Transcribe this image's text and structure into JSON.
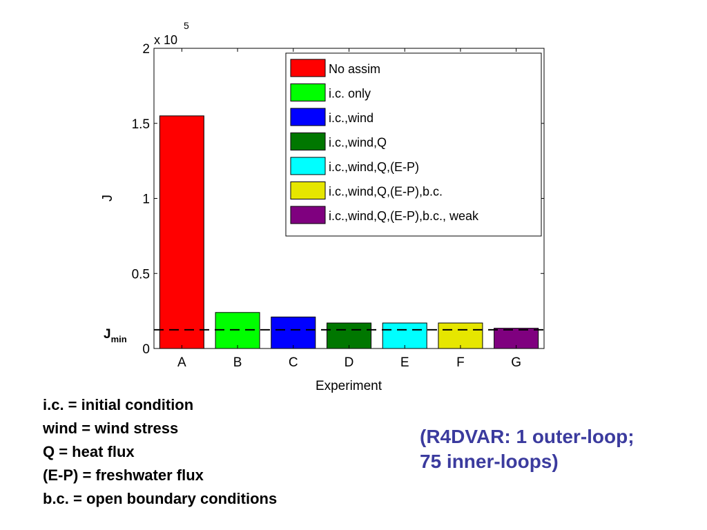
{
  "chart_data": {
    "type": "bar",
    "categories": [
      "A",
      "B",
      "C",
      "D",
      "E",
      "F",
      "G"
    ],
    "values": [
      155000,
      24000,
      21000,
      17000,
      17000,
      17000,
      13500
    ],
    "colors": [
      "#ff0000",
      "#00ff00",
      "#0000ff",
      "#007700",
      "#00ffff",
      "#e6e600",
      "#7f007f"
    ],
    "legend": [
      {
        "label": "No assim",
        "color": "#ff0000"
      },
      {
        "label": "i.c. only",
        "color": "#00ff00"
      },
      {
        "label": "i.c.,wind",
        "color": "#0000ff"
      },
      {
        "label": "i.c.,wind,Q",
        "color": "#007700"
      },
      {
        "label": "i.c.,wind,Q,(E-P)",
        "color": "#00ffff"
      },
      {
        "label": "i.c.,wind,Q,(E-P),b.c.",
        "color": "#e6e600"
      },
      {
        "label": "i.c.,wind,Q,(E-P),b.c., weak",
        "color": "#7f007f"
      }
    ],
    "legend_position": "top-right",
    "xlabel": "Experiment",
    "ylabel": "J",
    "ylim": [
      0,
      200000
    ],
    "yticks": [
      0,
      50000,
      100000,
      150000,
      200000
    ],
    "ytick_labels": [
      "0",
      "0.5",
      "1",
      "1.5",
      "2"
    ],
    "y_exponent_base": "x 10",
    "y_exponent_power": "5",
    "reference_line": {
      "label_main": "J",
      "label_sub": "min",
      "value": 12500,
      "style": "dashed"
    },
    "grid": false
  },
  "definitions": [
    "i.c. = initial condition",
    "wind = wind stress",
    "Q = heat flux",
    "(E-P) = freshwater flux",
    "b.c. = open boundary conditions"
  ],
  "note": {
    "line1": "(R4DVAR: 1 outer-loop;",
    "line2": "75 inner-loops)"
  }
}
